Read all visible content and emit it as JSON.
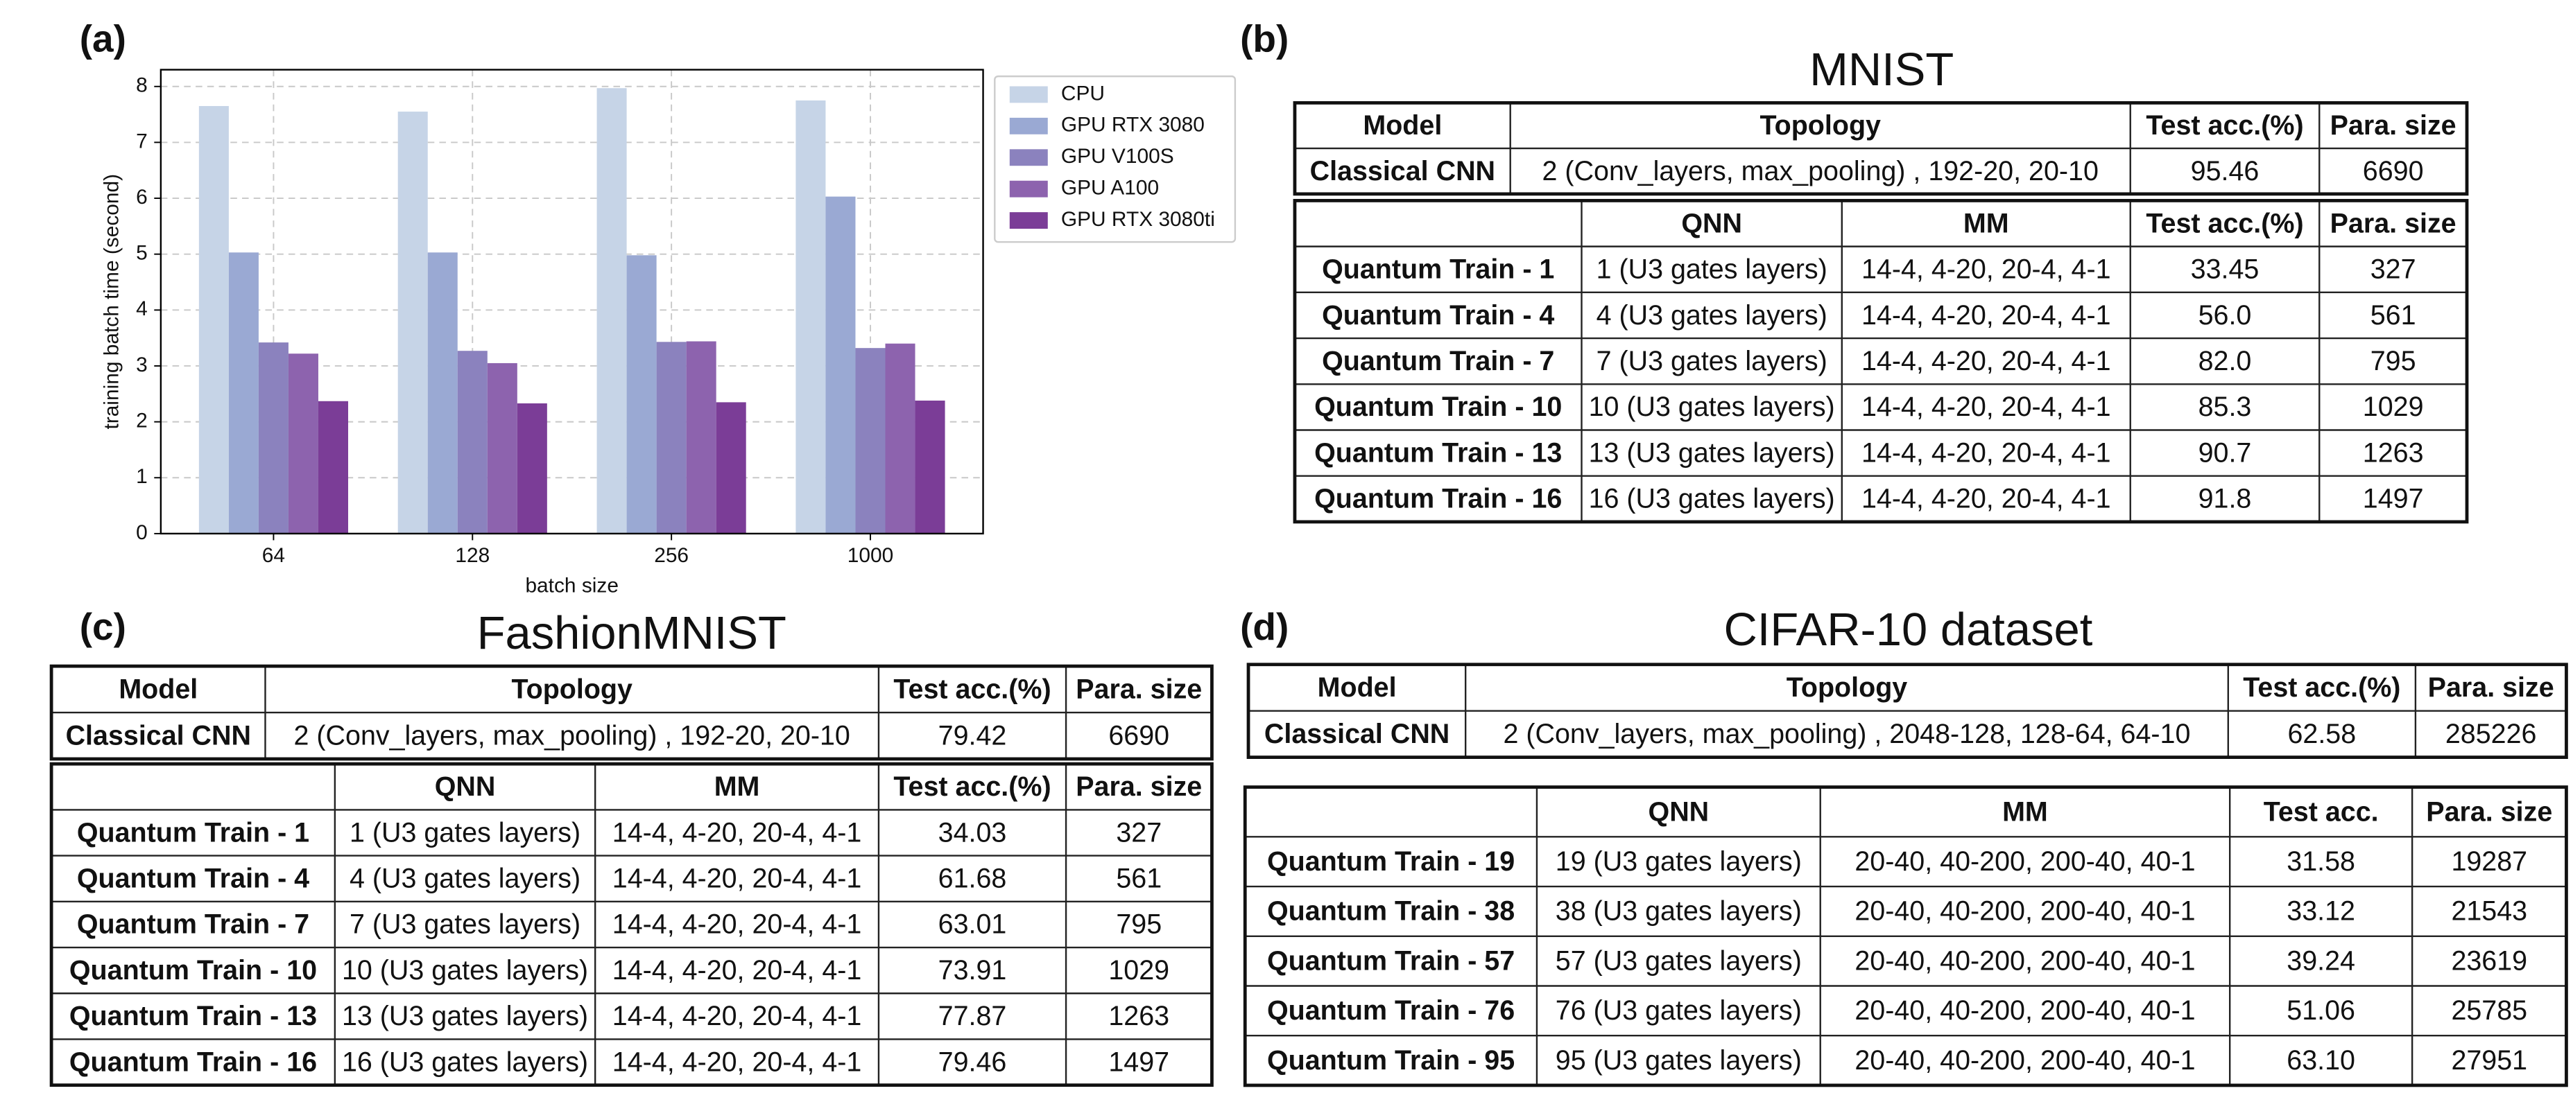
{
  "chart_data": {
    "type": "bar",
    "panel_label": "(a)",
    "xlabel": "batch size",
    "ylabel": "training batch time (second)",
    "categories": [
      "64",
      "128",
      "256",
      "1000"
    ],
    "series": [
      {
        "name": "CPU",
        "color": "#c6d4e7",
        "values": [
          7.65,
          7.55,
          7.97,
          7.75
        ]
      },
      {
        "name": "GPU RTX 3080",
        "color": "#9aa9d3",
        "values": [
          5.03,
          5.03,
          4.98,
          6.03
        ]
      },
      {
        "name": "GPU V100S",
        "color": "#8b82be",
        "values": [
          3.42,
          3.27,
          3.43,
          3.32
        ]
      },
      {
        "name": "GPU A100",
        "color": "#8d63ae",
        "values": [
          3.22,
          3.05,
          3.44,
          3.4
        ]
      },
      {
        "name": "GPU RTX 3080ti",
        "color": "#7b3d97",
        "values": [
          2.37,
          2.33,
          2.35,
          2.38
        ]
      }
    ],
    "ylim": [
      0,
      8.3
    ],
    "yticks": [
      0,
      1,
      2,
      3,
      4,
      5,
      6,
      7,
      8
    ],
    "grid": true,
    "legend": "outside upper right"
  },
  "tables": [
    {
      "panel_label": "(b)",
      "title": "MNIST",
      "cnn": {
        "header": [
          "Model",
          "Topology",
          "Test acc.(%)",
          "Para. size"
        ],
        "rows": [
          [
            "Classical CNN",
            "2 (Conv_layers, max_pooling) , 192-20, 20-10",
            "95.46",
            "6690"
          ]
        ]
      },
      "qnn": {
        "header": [
          "QNN",
          "MM",
          "Test acc.(%)",
          "Para. size"
        ],
        "rows": [
          [
            "Quantum Train - 1",
            "1 (U3 gates layers)",
            "14-4, 4-20, 20-4, 4-1",
            "33.45",
            "327"
          ],
          [
            "Quantum Train - 4",
            "4 (U3 gates layers)",
            "14-4, 4-20, 20-4, 4-1",
            "56.0",
            "561"
          ],
          [
            "Quantum Train - 7",
            "7 (U3 gates layers)",
            "14-4, 4-20, 20-4, 4-1",
            "82.0",
            "795"
          ],
          [
            "Quantum Train - 10",
            "10 (U3 gates layers)",
            "14-4, 4-20, 20-4, 4-1",
            "85.3",
            "1029"
          ],
          [
            "Quantum Train - 13",
            "13 (U3 gates layers)",
            "14-4, 4-20, 20-4, 4-1",
            "90.7",
            "1263"
          ],
          [
            "Quantum Train - 16",
            "16 (U3 gates layers)",
            "14-4, 4-20, 20-4, 4-1",
            "91.8",
            "1497"
          ]
        ]
      }
    },
    {
      "panel_label": "(c)",
      "title": "FashionMNIST",
      "cnn": {
        "header": [
          "Model",
          "Topology",
          "Test acc.(%)",
          "Para. size"
        ],
        "rows": [
          [
            "Classical CNN",
            "2 (Conv_layers, max_pooling) , 192-20, 20-10",
            "79.42",
            "6690"
          ]
        ]
      },
      "qnn": {
        "header": [
          "QNN",
          "MM",
          "Test acc.(%)",
          "Para. size"
        ],
        "rows": [
          [
            "Quantum Train - 1",
            "1 (U3 gates layers)",
            "14-4, 4-20, 20-4, 4-1",
            "34.03",
            "327"
          ],
          [
            "Quantum Train - 4",
            "4 (U3 gates layers)",
            "14-4, 4-20, 20-4, 4-1",
            "61.68",
            "561"
          ],
          [
            "Quantum Train - 7",
            "7 (U3 gates layers)",
            "14-4, 4-20, 20-4, 4-1",
            "63.01",
            "795"
          ],
          [
            "Quantum Train - 10",
            "10 (U3 gates layers)",
            "14-4, 4-20, 20-4, 4-1",
            "73.91",
            "1029"
          ],
          [
            "Quantum Train - 13",
            "13 (U3 gates layers)",
            "14-4, 4-20, 20-4, 4-1",
            "77.87",
            "1263"
          ],
          [
            "Quantum Train - 16",
            "16 (U3 gates layers)",
            "14-4, 4-20, 20-4, 4-1",
            "79.46",
            "1497"
          ]
        ]
      }
    },
    {
      "panel_label": "(d)",
      "title": "CIFAR-10 dataset",
      "cnn": {
        "header": [
          "Model",
          "Topology",
          "Test acc.(%)",
          "Para. size"
        ],
        "rows": [
          [
            "Classical CNN",
            "2 (Conv_layers, max_pooling) , 2048-128, 128-64, 64-10",
            "62.58",
            "285226"
          ]
        ]
      },
      "qnn": {
        "header": [
          "QNN",
          "MM",
          "Test acc.",
          "Para. size"
        ],
        "rows": [
          [
            "Quantum Train - 19",
            "19 (U3 gates layers)",
            "20-40, 40-200, 200-40, 40-1",
            "31.58",
            "19287"
          ],
          [
            "Quantum Train - 38",
            "38 (U3 gates layers)",
            "20-40, 40-200, 200-40, 40-1",
            "33.12",
            "21543"
          ],
          [
            "Quantum Train - 57",
            "57 (U3 gates layers)",
            "20-40, 40-200, 200-40, 40-1",
            "39.24",
            "23619"
          ],
          [
            "Quantum Train - 76",
            "76 (U3 gates layers)",
            "20-40, 40-200, 200-40, 40-1",
            "51.06",
            "25785"
          ],
          [
            "Quantum Train - 95",
            "95 (U3 gates layers)",
            "20-40, 40-200, 200-40, 40-1",
            "63.10",
            "27951"
          ]
        ]
      }
    }
  ]
}
